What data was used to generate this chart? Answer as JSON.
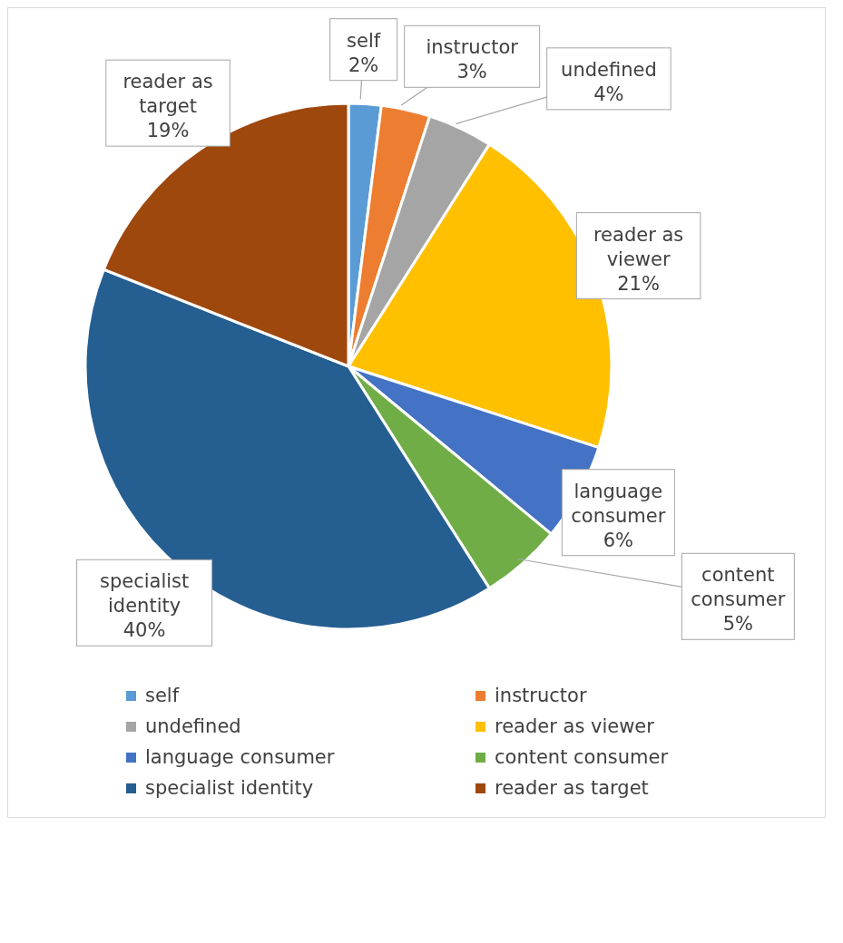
{
  "chart_data": {
    "type": "pie",
    "categories": [
      "self",
      "instructor",
      "undefined",
      "reader as viewer",
      "language consumer",
      "content consumer",
      "specialist identity",
      "reader as target"
    ],
    "values": [
      2,
      3,
      4,
      21,
      6,
      5,
      40,
      19
    ],
    "colors": [
      "#5b9bd5",
      "#ed7d31",
      "#a5a5a5",
      "#ffc000",
      "#4472c4",
      "#70ad47",
      "#255e91",
      "#9e480e"
    ],
    "value_labels": [
      "2%",
      "3%",
      "4%",
      "21%",
      "6%",
      "5%",
      "40%",
      "19%"
    ],
    "legend": "bottom"
  }
}
